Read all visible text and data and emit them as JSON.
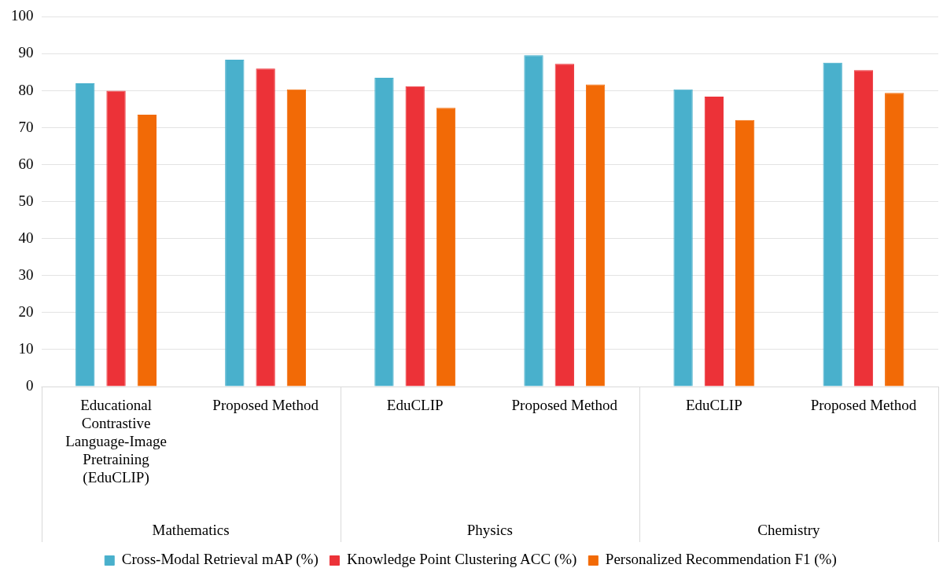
{
  "chart_data": {
    "type": "bar",
    "categories": [
      "Educational Contrastive Language-Image Pretraining (EduCLIP)",
      "Proposed Method",
      "EduCLIP",
      "Proposed Method",
      "EduCLIP",
      "Proposed Method"
    ],
    "annotations": [
      "Mathematics",
      "Physics",
      "Chemistry"
    ],
    "series": [
      {
        "name": "Cross-Modal Retrieval mAP (%)",
        "color": "#49b0cc",
        "values": [
          82,
          88.4,
          83.5,
          89.6,
          80.4,
          87.6
        ]
      },
      {
        "name": "Knowledge Point Clustering ACC (%)",
        "color": "#ec3238",
        "values": [
          80,
          86,
          81.2,
          87.3,
          78.4,
          85.6
        ]
      },
      {
        "name": "Personalized Recommendation F1 (%)",
        "color": "#f26a06",
        "values": [
          73.5,
          80.4,
          75.4,
          81.7,
          72.1,
          79.4
        ]
      }
    ],
    "ylim": [
      0,
      100
    ],
    "yticks": [
      0,
      10,
      20,
      30,
      40,
      50,
      60,
      70,
      80,
      90,
      100
    ],
    "grid": "y",
    "legend": "bottom"
  }
}
